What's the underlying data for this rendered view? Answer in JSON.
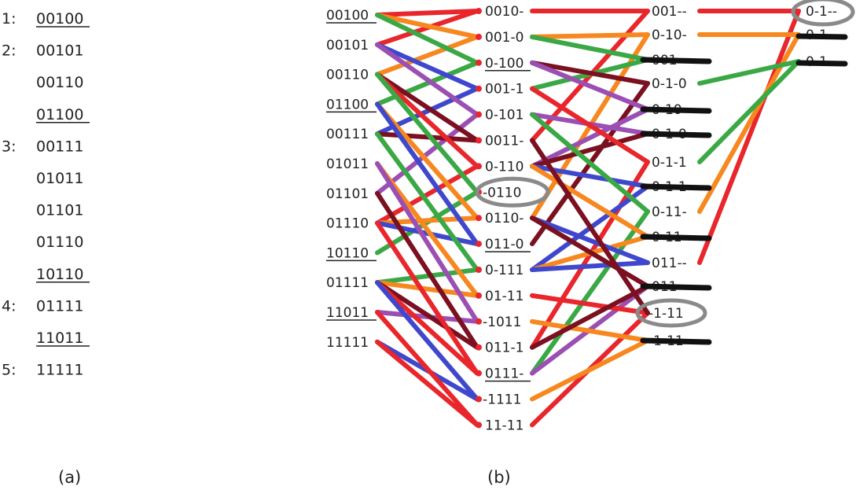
{
  "colors": {
    "red": "#e8262b",
    "orange": "#f7871f",
    "green": "#3aa845",
    "purple": "#9b4fb3",
    "blue": "#3f48cc",
    "maroon": "#7a1020",
    "black": "#111111",
    "ellipse": "#8a8a8a"
  },
  "panel_a": {
    "caption": "(a)",
    "groups": [
      {
        "label": "1:",
        "terms": [
          {
            "text": "00100",
            "underline": true
          }
        ]
      },
      {
        "label": "2:",
        "terms": [
          {
            "text": "00101",
            "underline": false
          },
          {
            "text": "00110",
            "underline": false
          },
          {
            "text": "01100",
            "underline": true
          }
        ]
      },
      {
        "label": "3:",
        "terms": [
          {
            "text": "00111",
            "underline": false
          },
          {
            "text": "01011",
            "underline": false
          },
          {
            "text": "01101",
            "underline": false
          },
          {
            "text": "01110",
            "underline": false
          },
          {
            "text": "10110",
            "underline": true
          }
        ]
      },
      {
        "label": "4:",
        "terms": [
          {
            "text": "01111",
            "underline": false
          },
          {
            "text": "11011",
            "underline": true
          }
        ]
      },
      {
        "label": "5:",
        "terms": [
          {
            "text": "11111",
            "underline": false
          }
        ]
      }
    ]
  },
  "panel_b": {
    "caption": "(b)",
    "column1": [
      {
        "text": "00100",
        "underline": true
      },
      {
        "text": "00101",
        "underline": false
      },
      {
        "text": "00110",
        "underline": false
      },
      {
        "text": "01100",
        "underline": true
      },
      {
        "text": "00111",
        "underline": false
      },
      {
        "text": "01011",
        "underline": false
      },
      {
        "text": "01101",
        "underline": false
      },
      {
        "text": "01110",
        "underline": false
      },
      {
        "text": "10110",
        "underline": true
      },
      {
        "text": "01111",
        "underline": false
      },
      {
        "text": "11011",
        "underline": true
      },
      {
        "text": "11111",
        "underline": false
      }
    ],
    "column2": [
      {
        "text": "0010-",
        "underline": false,
        "circled": false
      },
      {
        "text": "001-0",
        "underline": false,
        "circled": false
      },
      {
        "text": "0-100",
        "underline": true,
        "circled": false
      },
      {
        "text": "001-1",
        "underline": false,
        "circled": false
      },
      {
        "text": "0-101",
        "underline": false,
        "circled": false
      },
      {
        "text": "0011-",
        "underline": false,
        "circled": false
      },
      {
        "text": "0-110",
        "underline": false,
        "circled": false
      },
      {
        "text": "-0110",
        "underline": false,
        "circled": true
      },
      {
        "text": "0110-",
        "underline": false,
        "circled": false
      },
      {
        "text": "011-0",
        "underline": true,
        "circled": false
      },
      {
        "text": "0-111",
        "underline": false,
        "circled": false
      },
      {
        "text": "01-11",
        "underline": false,
        "circled": false
      },
      {
        "text": "-1011",
        "underline": false,
        "circled": false
      },
      {
        "text": "011-1",
        "underline": false,
        "circled": false
      },
      {
        "text": "0111-",
        "underline": true,
        "circled": false
      },
      {
        "text": "-1111",
        "underline": false,
        "circled": false
      },
      {
        "text": "11-11",
        "underline": false,
        "circled": false
      }
    ],
    "column3": [
      {
        "text": "001--",
        "struck": false,
        "circled": false
      },
      {
        "text": "0-10-",
        "struck": false,
        "circled": false
      },
      {
        "text": "001-",
        "struck": true,
        "circled": false
      },
      {
        "text": "0-1-0",
        "struck": false,
        "circled": false
      },
      {
        "text": "0-10-",
        "struck": true,
        "circled": false
      },
      {
        "text": "0-1-0",
        "struck": true,
        "circled": false
      },
      {
        "text": "0-1-1",
        "struck": false,
        "circled": false
      },
      {
        "text": "0-1-1",
        "struck": true,
        "circled": false
      },
      {
        "text": "0-11-",
        "struck": false,
        "circled": false
      },
      {
        "text": "0-11-",
        "struck": true,
        "circled": false
      },
      {
        "text": "011--",
        "struck": false,
        "circled": false
      },
      {
        "text": "011--",
        "struck": true,
        "circled": false
      },
      {
        "text": "-1-11",
        "struck": false,
        "circled": true
      },
      {
        "text": "-1-11",
        "struck": true,
        "circled": false
      }
    ],
    "column4": [
      {
        "text": "0-1--",
        "struck": false,
        "circled": true
      },
      {
        "text": "0-1--",
        "struck": true,
        "circled": false
      },
      {
        "text": "0-1--",
        "struck": true,
        "circled": false
      }
    ]
  }
}
